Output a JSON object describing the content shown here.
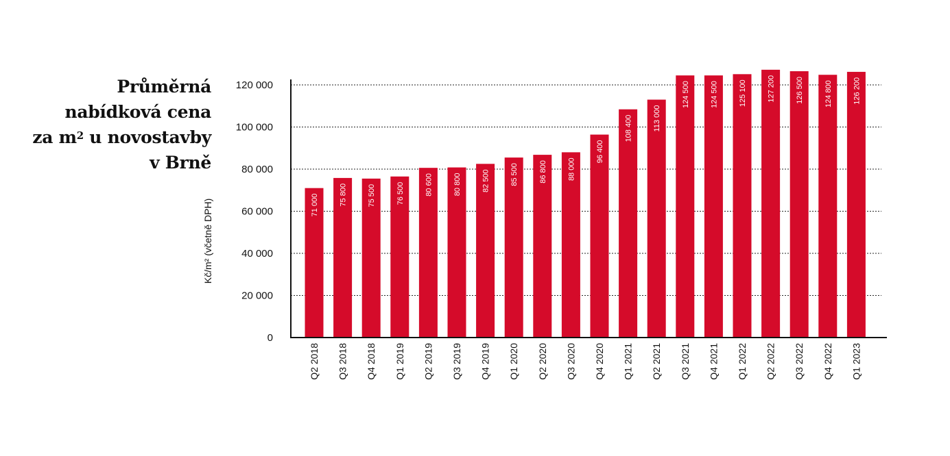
{
  "chart_data": {
    "type": "bar",
    "title_lines": [
      "Průměrná",
      "nabídková cena",
      "za m² u novostavby",
      "v Brně"
    ],
    "ylabel": "Kč/m² (včetně DPH)",
    "xlabel": "",
    "ylim": [
      0,
      120000
    ],
    "yticks": [
      0,
      20000,
      40000,
      60000,
      80000,
      100000,
      120000
    ],
    "ytick_labels": [
      "0",
      "20 000",
      "40 000",
      "60 000",
      "80 000",
      "100 000",
      "120 000"
    ],
    "grid": "horizontal dashed",
    "categories": [
      "Q2 2018",
      "Q3 2018",
      "Q4 2018",
      "Q1 2019",
      "Q2 2019",
      "Q3 2019",
      "Q4 2019",
      "Q1 2020",
      "Q2 2020",
      "Q3 2020",
      "Q4 2020",
      "Q1 2021",
      "Q2 2021",
      "Q3 2021",
      "Q4 2021",
      "Q1 2022",
      "Q2 2022",
      "Q3 2022",
      "Q4 2022",
      "Q1 2023"
    ],
    "values": [
      71000,
      75800,
      75500,
      76500,
      80600,
      80800,
      82500,
      85500,
      86800,
      88000,
      96400,
      108400,
      113000,
      124500,
      124500,
      125100,
      127200,
      126500,
      124800,
      126200
    ],
    "value_labels": [
      "71 000",
      "75 800",
      "75 500",
      "76 500",
      "80 600",
      "80 800",
      "82 500",
      "85 500",
      "86 800",
      "88 000",
      "96 400",
      "108 400",
      "113 000",
      "124 500",
      "124 500",
      "125 100",
      "127 200",
      "126 500",
      "124 800",
      "126 200"
    ],
    "bar_color": "#d50b2a"
  }
}
